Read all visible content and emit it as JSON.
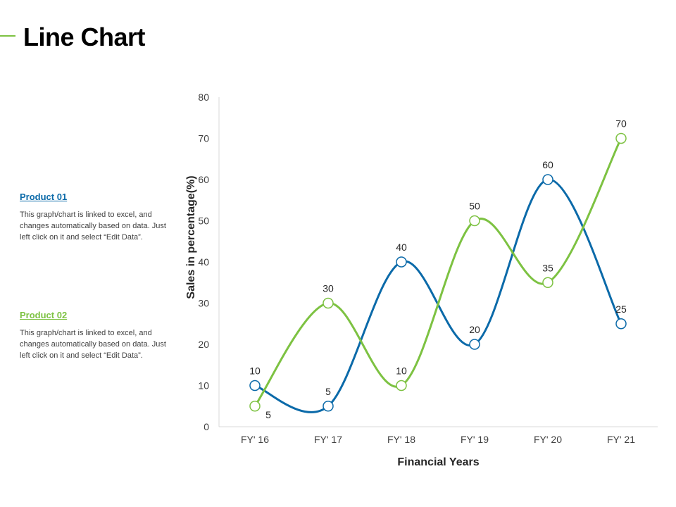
{
  "page": {
    "title": "Line Chart"
  },
  "legend": [
    {
      "name": "Product 01",
      "color": "#0b6aa9",
      "description": "This graph/chart is linked to excel, and changes automatically based on data. Just left click on it and select “Edit Data”."
    },
    {
      "name": "Product 02",
      "color": "#7dc242",
      "description": "This graph/chart is linked to excel, and changes automatically based on data. Just left click on it and select “Edit Data”."
    }
  ],
  "chart_data": {
    "type": "line",
    "categories": [
      "FY' 16",
      "FY' 17",
      "FY' 18",
      "FY' 19",
      "FY' 20",
      "FY' 21"
    ],
    "series": [
      {
        "name": "Product 01",
        "color": "#0b6aa9",
        "values": [
          10,
          5,
          40,
          20,
          60,
          25
        ]
      },
      {
        "name": "Product 02",
        "color": "#7dc242",
        "values": [
          5,
          30,
          10,
          50,
          35,
          70
        ]
      }
    ],
    "xlabel": "Financial Years",
    "ylabel": "Sales in percentage(%)",
    "ylim": [
      0,
      80
    ],
    "yticks": [
      0,
      10,
      20,
      30,
      40,
      50,
      60,
      70,
      80
    ],
    "smooth": true,
    "grid": false
  }
}
